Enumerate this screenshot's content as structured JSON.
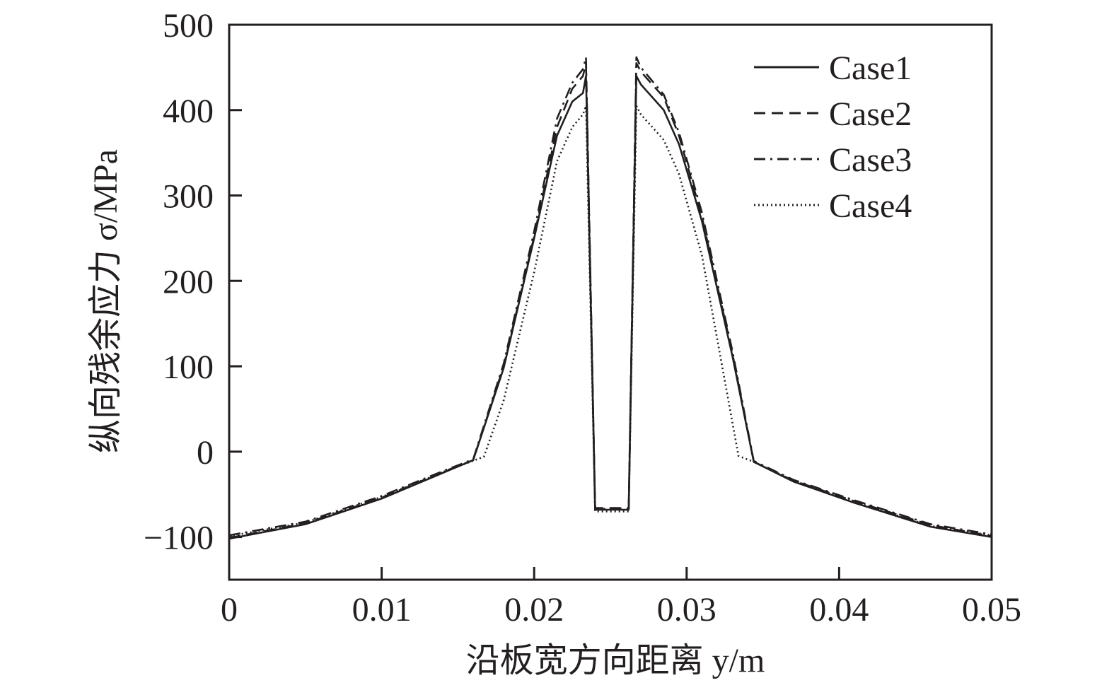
{
  "chart_data": {
    "type": "line",
    "xlabel": "沿板宽方向距离 y/m",
    "ylabel": "纵向残余应力 σ/MPa",
    "xlim": [
      0,
      0.05
    ],
    "ylim": [
      -150,
      500
    ],
    "xticks": [
      0,
      0.01,
      0.02,
      0.03,
      0.04,
      0.05
    ],
    "xtick_labels": [
      "0",
      "0.01",
      "0.02",
      "0.03",
      "0.04",
      "0.05"
    ],
    "yticks": [
      -100,
      0,
      100,
      200,
      300,
      400,
      500
    ],
    "ytick_labels": [
      "−100",
      "0",
      "100",
      "200",
      "300",
      "400",
      "500"
    ],
    "grid": false,
    "legend_position": "top-right",
    "colors": {
      "line": "#231f20",
      "background": "#ffffff"
    },
    "series": [
      {
        "name": "Case1",
        "style": "solid",
        "x": [
          0,
          0.005,
          0.01,
          0.014,
          0.016,
          0.018,
          0.02,
          0.0215,
          0.0225,
          0.0232,
          0.0234,
          0.024,
          0.0262,
          0.0267,
          0.027,
          0.0285,
          0.0295,
          0.031,
          0.033,
          0.0344,
          0.037,
          0.041,
          0.046,
          0.05
        ],
        "y": [
          -102,
          -85,
          -55,
          -25,
          -10,
          98,
          250,
          370,
          410,
          420,
          440,
          -68,
          -68,
          440,
          430,
          400,
          360,
          270,
          112,
          -12,
          -35,
          -60,
          -88,
          -100
        ]
      },
      {
        "name": "Case2",
        "style": "dashed",
        "x": [
          0,
          0.005,
          0.01,
          0.014,
          0.016,
          0.018,
          0.02,
          0.0215,
          0.0225,
          0.0232,
          0.0234,
          0.024,
          0.0262,
          0.0267,
          0.027,
          0.0285,
          0.0295,
          0.031,
          0.033,
          0.0344,
          0.037,
          0.041,
          0.046,
          0.05
        ],
        "y": [
          -101,
          -84,
          -54,
          -24,
          -10,
          100,
          252,
          380,
          425,
          440,
          455,
          -66,
          -66,
          455,
          445,
          415,
          370,
          275,
          115,
          -12,
          -34,
          -58,
          -86,
          -99
        ]
      },
      {
        "name": "Case3",
        "style": "dashdot",
        "x": [
          0,
          0.005,
          0.01,
          0.014,
          0.016,
          0.018,
          0.02,
          0.0215,
          0.0225,
          0.0232,
          0.0234,
          0.024,
          0.0262,
          0.0267,
          0.027,
          0.0285,
          0.0295,
          0.031,
          0.033,
          0.0344,
          0.037,
          0.041,
          0.046,
          0.05
        ],
        "y": [
          -98,
          -82,
          -52,
          -23,
          -9,
          103,
          258,
          390,
          432,
          448,
          462,
          -67,
          -67,
          462,
          450,
          418,
          374,
          280,
          118,
          -11,
          -33,
          -57,
          -85,
          -97
        ]
      },
      {
        "name": "Case4",
        "style": "dotted",
        "x": [
          0,
          0.005,
          0.01,
          0.014,
          0.0167,
          0.018,
          0.02,
          0.0215,
          0.0225,
          0.0232,
          0.0234,
          0.024,
          0.0262,
          0.0267,
          0.027,
          0.0285,
          0.0295,
          0.031,
          0.0334,
          0.0344,
          0.037,
          0.041,
          0.046,
          0.05
        ],
        "y": [
          -99,
          -83,
          -53,
          -24,
          -6,
          60,
          210,
          340,
          380,
          395,
          405,
          -70,
          -70,
          405,
          395,
          365,
          325,
          230,
          -5,
          -12,
          -34,
          -59,
          -87,
          -98
        ]
      }
    ]
  }
}
